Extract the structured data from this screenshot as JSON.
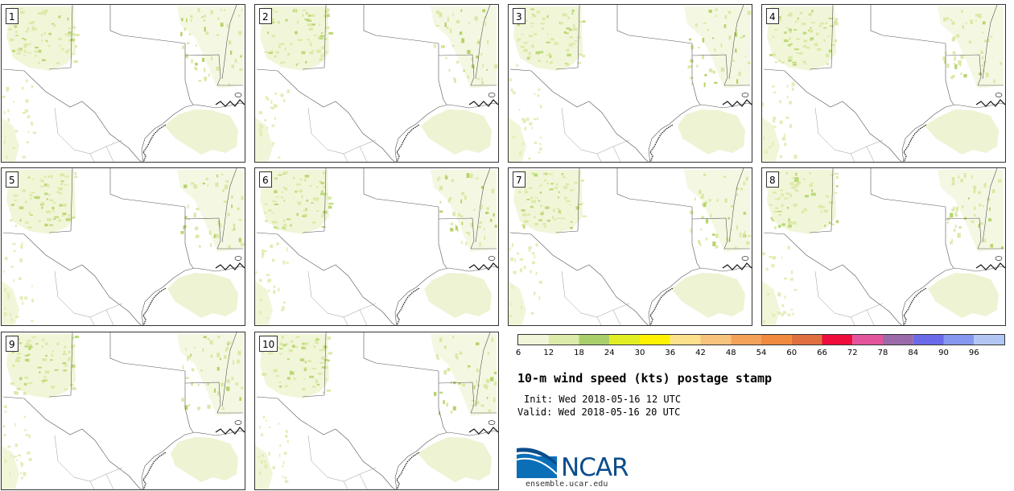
{
  "panels": [
    {
      "label": "1"
    },
    {
      "label": "2"
    },
    {
      "label": "3"
    },
    {
      "label": "4"
    },
    {
      "label": "5"
    },
    {
      "label": "6"
    },
    {
      "label": "7"
    },
    {
      "label": "8"
    },
    {
      "label": "9"
    },
    {
      "label": "10"
    }
  ],
  "colorbar": {
    "colors": [
      "#f1f6d9",
      "#dcebaa",
      "#a9cf6b",
      "#e2ee24",
      "#fff200",
      "#fde08c",
      "#f8c37c",
      "#f4a259",
      "#ef8a3e",
      "#e06f40",
      "#ee0d3d",
      "#e2549b",
      "#9b6aa8",
      "#6b6bea",
      "#8597ef",
      "#b2c6f4"
    ],
    "ticks": [
      "6",
      "12",
      "18",
      "24",
      "30",
      "36",
      "42",
      "48",
      "54",
      "60",
      "66",
      "72",
      "78",
      "84",
      "90",
      "96"
    ]
  },
  "title": "10-m wind speed (kts) postage stamp",
  "init": "Init: Wed 2018-05-16 12 UTC",
  "valid": "Valid: Wed 2018-05-16 20 UTC",
  "logo": {
    "name": "NCAR",
    "url": "ensemble.ucar.edu"
  }
}
